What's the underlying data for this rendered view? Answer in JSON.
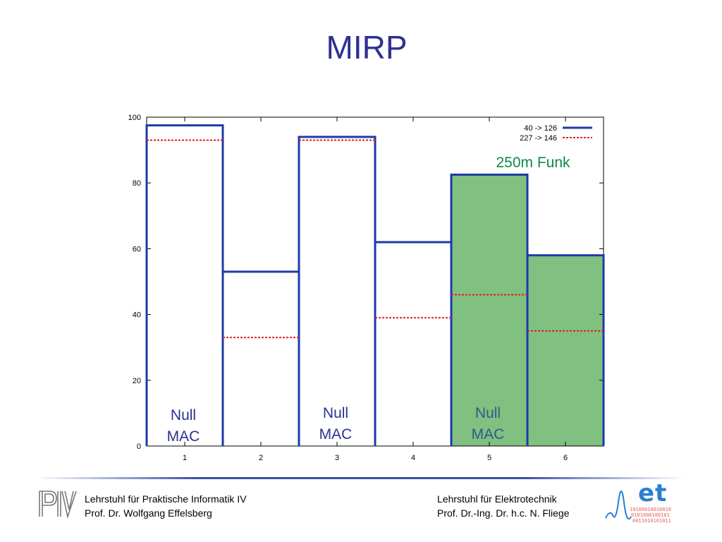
{
  "slide": {
    "title": "MIRP"
  },
  "footer": {
    "left_line1": "Lehrstuhl für Praktische Informatik IV",
    "left_line2": "Prof. Dr. Wolfgang Effelsberg",
    "right_line1": "Lehrstuhl für Elektrotechnik",
    "right_line2": "Prof. Dr.-Ing. Dr. h.c. N. Fliege",
    "logo_left_text": "PI4",
    "logo_right_text": "et",
    "logo_right_binary": [
      "10100010010010",
      "0101000100101",
      "0011010101011"
    ]
  },
  "chart_data": {
    "type": "bar",
    "categories": [
      "1",
      "2",
      "3",
      "4",
      "5",
      "6"
    ],
    "ylim": [
      0,
      100
    ],
    "yticks": [
      0,
      20,
      40,
      60,
      80,
      100
    ],
    "series": [
      {
        "name": "40 -> 126",
        "style": "solid",
        "color": "#1c3aa9",
        "values": [
          97.5,
          53,
          94,
          62,
          82.5,
          58
        ]
      },
      {
        "name": "227 -> 146",
        "style": "dotted",
        "color": "#e02020",
        "values": [
          93,
          33,
          93,
          39,
          46,
          35
        ]
      }
    ],
    "highlight": {
      "categories": [
        "5",
        "6"
      ],
      "color": "#80c080",
      "label": "250m Funk",
      "label_color": "#0a8a4a"
    },
    "annotations": [
      {
        "category": "1",
        "text": [
          "Null",
          "MAC"
        ],
        "color": "#2e3192"
      },
      {
        "category": "3",
        "text": [
          "Null",
          "MAC"
        ],
        "color": "#2e3192"
      },
      {
        "category": "5",
        "text": [
          "Null",
          "MAC"
        ],
        "color": "#2f5a8a"
      }
    ],
    "legend_position": "top-right",
    "grid": false
  }
}
